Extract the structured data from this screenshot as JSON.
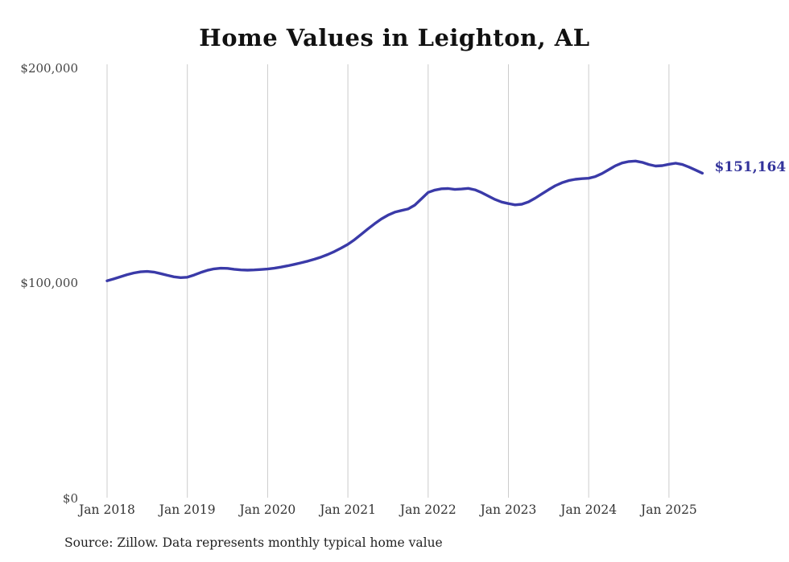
{
  "title": "Home Values in Leighton, AL",
  "source_note": "Source: Zillow. Data represents monthly typical home value",
  "end_label": "$151,164",
  "colors": {
    "line": "#3a3aa8",
    "end_label": "#33339b",
    "gridline": "#cccccc",
    "axis_text": "#444444",
    "title_text": "#111111"
  },
  "chart_data": {
    "type": "line",
    "title": "Home Values in Leighton, AL",
    "xlabel": "",
    "ylabel": "",
    "x_start_month": "2018-01",
    "x_end_month": "2025-06",
    "months_per_point": 1,
    "x_tick_labels": [
      "Jan 2018",
      "Jan 2019",
      "Jan 2020",
      "Jan 2021",
      "Jan 2022",
      "Jan 2023",
      "Jan 2024",
      "Jan 2025"
    ],
    "y_tick_labels": [
      "$0",
      "$100,000",
      "$200,000"
    ],
    "y_tick_values": [
      0,
      100000,
      200000
    ],
    "ylim": [
      0,
      200000
    ],
    "grid": "vertical-only",
    "legend": "none",
    "last_point_label": "$151,164",
    "series": [
      {
        "name": "Typical home value",
        "values": [
          101000,
          101900,
          102900,
          103900,
          104700,
          105200,
          105400,
          105100,
          104400,
          103600,
          102900,
          102500,
          102700,
          103700,
          104900,
          105900,
          106600,
          106900,
          106800,
          106400,
          106100,
          106000,
          106100,
          106300,
          106500,
          106900,
          107400,
          108000,
          108700,
          109400,
          110200,
          111100,
          112100,
          113300,
          114700,
          116300,
          118000,
          120200,
          122700,
          125200,
          127600,
          129800,
          131600,
          133000,
          133800,
          134500,
          136300,
          139200,
          142200,
          143300,
          143900,
          144000,
          143600,
          143800,
          144100,
          143400,
          142100,
          140500,
          138900,
          137700,
          137000,
          136400,
          136700,
          137800,
          139500,
          141500,
          143500,
          145300,
          146700,
          147700,
          148300,
          148600,
          148800,
          149600,
          151000,
          152800,
          154600,
          155900,
          156600,
          156800,
          156200,
          155200,
          154500,
          154700,
          155300,
          155800,
          155200,
          154000,
          152600,
          151164
        ]
      }
    ]
  }
}
